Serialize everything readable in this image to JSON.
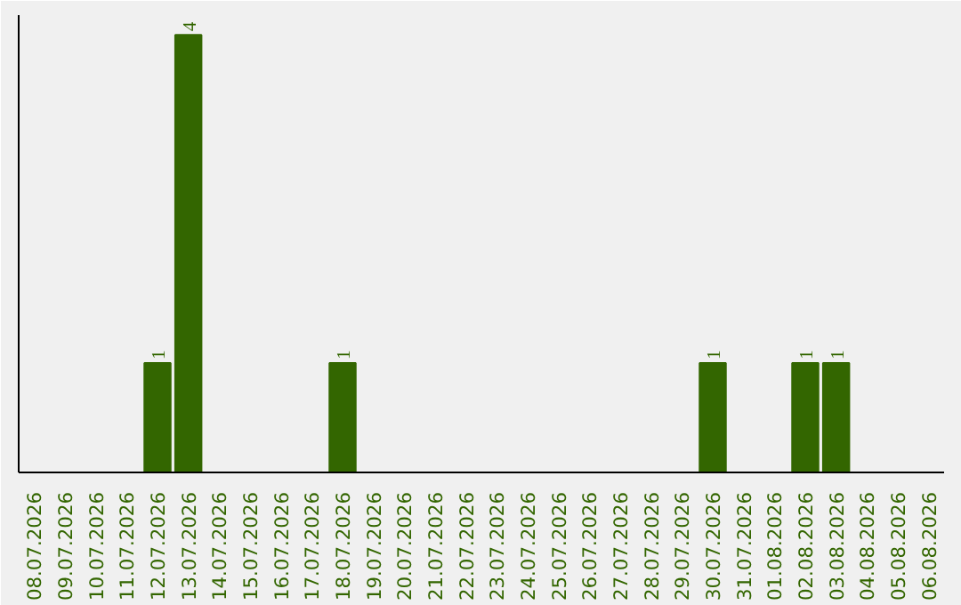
{
  "chart_data": {
    "type": "bar",
    "categories": [
      "08.07.2026",
      "09.07.2026",
      "10.07.2026",
      "11.07.2026",
      "12.07.2026",
      "13.07.2026",
      "14.07.2026",
      "15.07.2026",
      "16.07.2026",
      "17.07.2026",
      "18.07.2026",
      "19.07.2026",
      "20.07.2026",
      "21.07.2026",
      "22.07.2026",
      "23.07.2026",
      "24.07.2026",
      "25.07.2026",
      "26.07.2026",
      "27.07.2026",
      "28.07.2026",
      "29.07.2026",
      "30.07.2026",
      "31.07.2026",
      "01.08.2026",
      "02.08.2026",
      "03.08.2026",
      "04.08.2026",
      "05.08.2026",
      "06.08.2026"
    ],
    "values": [
      null,
      null,
      null,
      null,
      1,
      4,
      null,
      null,
      null,
      null,
      1,
      null,
      null,
      null,
      null,
      null,
      null,
      null,
      null,
      null,
      null,
      null,
      1,
      null,
      null,
      1,
      1,
      null,
      null,
      null
    ],
    "color": "#336600",
    "data_labels": true,
    "tick_labels": "x"
  }
}
